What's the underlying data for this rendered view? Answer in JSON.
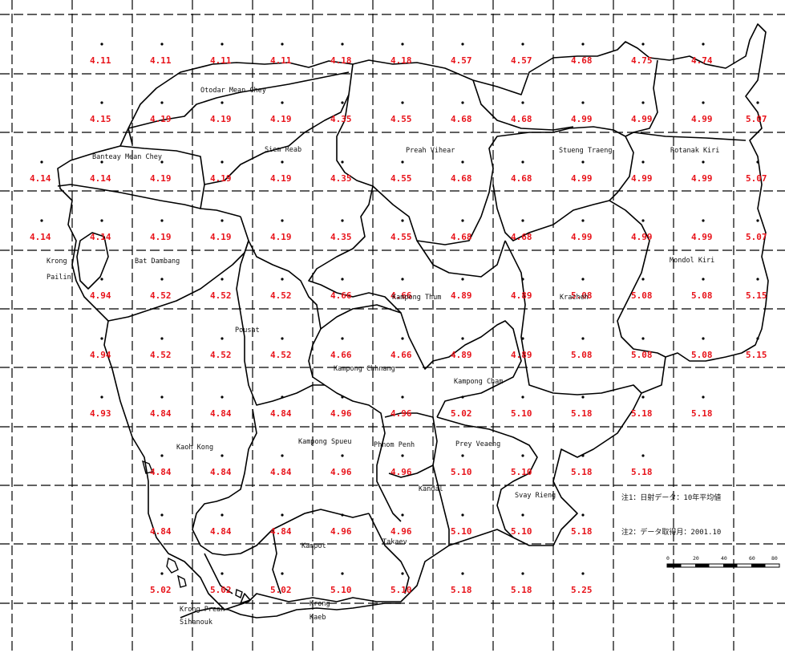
{
  "map": {
    "grid_rows": [
      [
        "",
        "4.11",
        "4.11",
        "4.11",
        "4.11",
        "4.18",
        "4.18",
        "4.57",
        "4.57",
        "4.68",
        "4.75",
        "4.74"
      ],
      [
        "",
        "4.15",
        "4.19",
        "4.19",
        "4.19",
        "4.35",
        "4.55",
        "4.68",
        "4.68",
        "4.99",
        "4.99",
        "4.99",
        "5.07"
      ],
      [
        "4.14",
        "4.14",
        "4.19",
        "4.19",
        "4.19",
        "4.35",
        "4.55",
        "4.68",
        "4.68",
        "4.99",
        "4.99",
        "4.99",
        "5.07"
      ],
      [
        "4.14",
        "4.14",
        "4.19",
        "4.19",
        "4.19",
        "4.35",
        "4.55",
        "4.68",
        "4.68",
        "4.99",
        "4.99",
        "4.99",
        "5.07"
      ],
      [
        "",
        "4.94",
        "4.52",
        "4.52",
        "4.52",
        "4.66",
        "4.66",
        "4.89",
        "4.89",
        "5.08",
        "5.08",
        "5.08",
        "5.15"
      ],
      [
        "",
        "4.94",
        "4.52",
        "4.52",
        "4.52",
        "4.66",
        "4.66",
        "4.89",
        "4.89",
        "5.08",
        "5.08",
        "5.08",
        "5.15"
      ],
      [
        "",
        "4.93",
        "4.84",
        "4.84",
        "4.84",
        "4.96",
        "4.96",
        "5.02",
        "5.10",
        "5.18",
        "5.18",
        "5.18",
        ""
      ],
      [
        "",
        "",
        "4.84",
        "4.84",
        "4.84",
        "4.96",
        "4.96",
        "5.10",
        "5.10",
        "5.18",
        "5.18",
        "",
        ""
      ],
      [
        "",
        "",
        "4.84",
        "4.84",
        "4.84",
        "4.96",
        "4.96",
        "5.10",
        "5.10",
        "5.18",
        "",
        "",
        ""
      ],
      [
        "",
        "",
        "5.02",
        "5.02",
        "5.02",
        "5.10",
        "5.10",
        "5.18",
        "5.18",
        "5.25",
        "",
        "",
        ""
      ]
    ],
    "provinces": [
      {
        "name": "Otodar Mean Chey"
      },
      {
        "name": "Siem Reab"
      },
      {
        "name": "Preah Vihear"
      },
      {
        "name": "Stueng Traeng"
      },
      {
        "name": "Rotanak Kiri"
      },
      {
        "name": "Banteay Mean Chey"
      },
      {
        "name": "Krong"
      },
      {
        "name": "Pailin"
      },
      {
        "name": "Bat Dambang"
      },
      {
        "name": "Mondol Kiri"
      },
      {
        "name": "Kampong Thum"
      },
      {
        "name": "Kracheh"
      },
      {
        "name": "Pousat"
      },
      {
        "name": "Kampong Chhnang"
      },
      {
        "name": "Kampong Cham"
      },
      {
        "name": "Kaoh Kong"
      },
      {
        "name": "Kampong Spueu"
      },
      {
        "name": "Phnom Penh"
      },
      {
        "name": "Prey Veaeng"
      },
      {
        "name": "Kandal"
      },
      {
        "name": "Svay Rieng"
      },
      {
        "name": "Kampot"
      },
      {
        "name": "Takaev"
      },
      {
        "name": "Krong Preah"
      },
      {
        "name": "Sihanouk"
      },
      {
        "name": "Krong"
      },
      {
        "name": "Kaeb"
      }
    ],
    "notes": [
      "注1：日射データ：10年平均値",
      "注2：データ取得月：2001.10"
    ],
    "scale": {
      "ticks": [
        "0",
        "20",
        "40",
        "60",
        "80"
      ]
    },
    "colors": {
      "values": "#e8141b",
      "boundaries": "#000000",
      "grid": "#000000",
      "background": "#ffffff"
    }
  }
}
